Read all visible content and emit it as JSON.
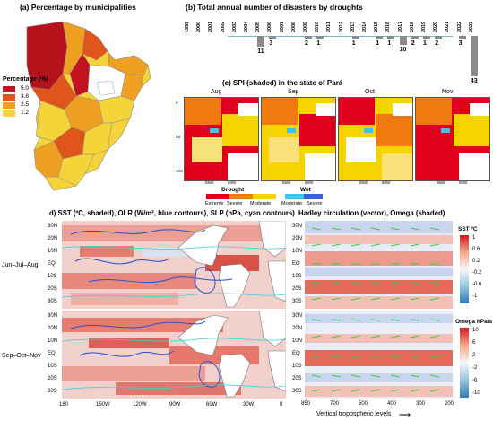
{
  "panel_a": {
    "title": "(a) Percentage by municipalities",
    "legend_title": "Percentage (%)",
    "legend": [
      {
        "label": "5.0",
        "color": "#c1121f"
      },
      {
        "label": "3.8",
        "color": "#e0561a"
      },
      {
        "label": "2.5",
        "color": "#f0a020"
      },
      {
        "label": "1.2",
        "color": "#f5d43a"
      }
    ]
  },
  "panel_b": {
    "title": "(b) Total annual number of disasters by droughts"
  },
  "panel_c": {
    "title": "(c) SPI (shaded) in the state of Pará",
    "months": [
      "Aug",
      "Sep",
      "Oct",
      "Nov"
    ],
    "axis_ticks": {
      "lat": [
        "0",
        "5S",
        "10S"
      ],
      "lon": [
        "55W",
        "50W"
      ]
    },
    "drought_label": "Drought",
    "wet_label": "Wet",
    "drought_classes": [
      {
        "label": "Extreme",
        "color": "#e0001b"
      },
      {
        "label": "Severe",
        "color": "#f07a10"
      },
      {
        "label": "Moderate",
        "color": "#f5d400"
      }
    ],
    "wet_classes": [
      {
        "label": "Moderate",
        "color": "#35c8e8"
      },
      {
        "label": "Severe",
        "color": "#3a5fd9"
      }
    ]
  },
  "panel_d": {
    "title": "d) SST (ºC, shaded), OLR (W/m², blue contours), SLP (hPa, cyan contours)",
    "rows": [
      "Jun–Jul–Aug",
      "Sep–Oct–Nov"
    ],
    "lat_ticks": [
      "30N",
      "20N",
      "10N",
      "EQ",
      "10S",
      "20S",
      "30S"
    ],
    "lon_ticks": [
      "180",
      "150W",
      "120W",
      "90W",
      "60W",
      "30W",
      "0"
    ]
  },
  "panel_e": {
    "title": "Hadley circulation (vector), Omega (shaded)",
    "x_ticks": [
      "850",
      "700",
      "500",
      "400",
      "300",
      "200"
    ],
    "x_label": "Vertical tropospheric levels",
    "sst_colorbar": {
      "title": "SST ºC",
      "ticks": [
        "1",
        "0.6",
        "0.2",
        "-0.2",
        "-0.6",
        "-1"
      ]
    },
    "omega_colorbar": {
      "title": "Omega hPa/s",
      "ticks": [
        "10",
        "6",
        "2",
        "-2",
        "-6",
        "-10"
      ]
    }
  },
  "chart_data": [
    {
      "type": "bar",
      "title": "(b) Total annual number of disasters by droughts",
      "categories": [
        "1999",
        "2000",
        "2001",
        "2002",
        "2003",
        "2004",
        "2005",
        "2006",
        "2007",
        "2008",
        "2009",
        "2010",
        "2011",
        "2012",
        "2013",
        "2014",
        "2015",
        "2016",
        "2017",
        "2018",
        "2019",
        "2020",
        "2021",
        "2022",
        "2023"
      ],
      "values": [
        0,
        0,
        0,
        0,
        0,
        0,
        11,
        3,
        0,
        0,
        2,
        1,
        0,
        0,
        1,
        0,
        1,
        1,
        10,
        2,
        1,
        2,
        0,
        3,
        43
      ]
    }
  ]
}
